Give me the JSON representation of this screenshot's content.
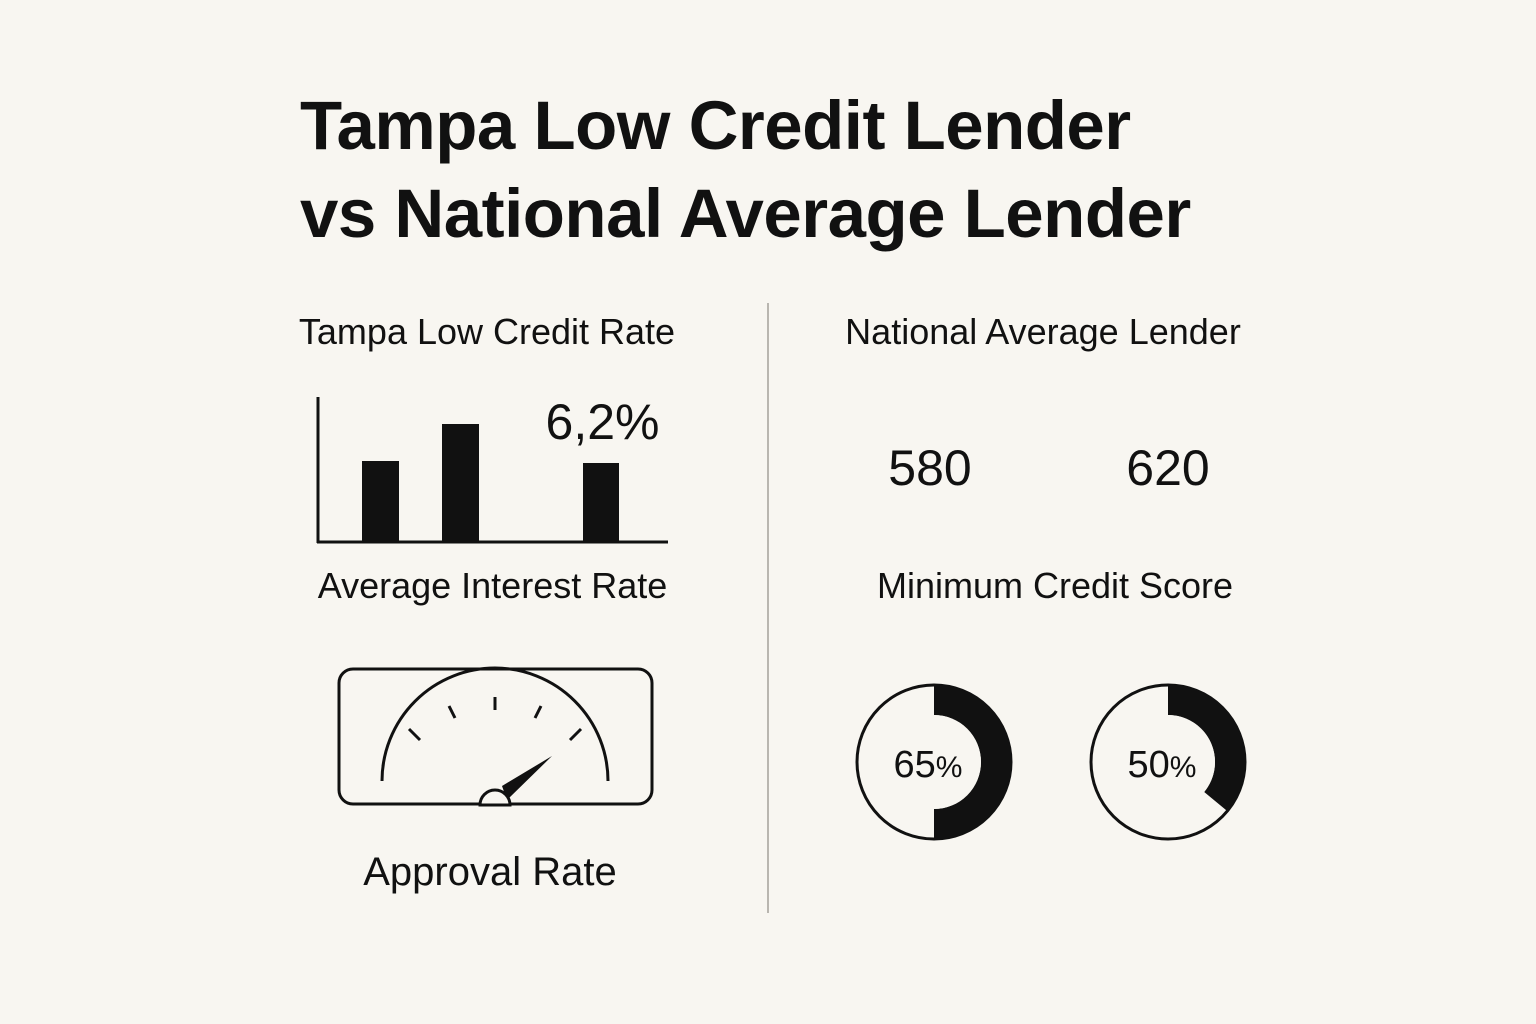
{
  "title": {
    "line1": "Tampa Low Credit Lender",
    "line2": "vs National Average Lender"
  },
  "left": {
    "heading": "Tampa Low Credit Rate",
    "interest_rate_value": "6,2%",
    "interest_rate_label": "Average Interest Rate",
    "approval_label": "Approval Rate"
  },
  "right": {
    "heading": "National Average Lender",
    "score_1": "580",
    "score_2": "620",
    "score_label": "Minimum Credit Score",
    "donut_1": {
      "value": 65,
      "number": "65",
      "unit": "%"
    },
    "donut_2": {
      "value": 50,
      "number": "50",
      "unit": "%"
    }
  },
  "colors": {
    "ink": "#111111",
    "background": "#f8f6f1",
    "divider": "#b9b6b0"
  },
  "icons": [
    "bar-chart-icon",
    "speedometer-gauge-icon",
    "donut-chart-icon"
  ]
}
